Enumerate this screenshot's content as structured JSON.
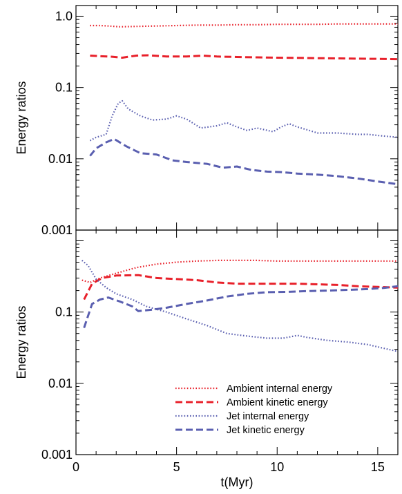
{
  "chart_data": [
    {
      "type": "line",
      "panel": "top",
      "title": "",
      "xlabel": "",
      "ylabel": "Energy ratios",
      "xlim": [
        0,
        16
      ],
      "ylim": [
        0.001,
        1.0
      ],
      "yscale": "log",
      "yticks": [
        {
          "value": 0.001,
          "label": "0.001"
        },
        {
          "value": 0.01,
          "label": "0.01"
        },
        {
          "value": 0.1,
          "label": "0.1"
        },
        {
          "value": 1.0,
          "label": "1.0"
        }
      ],
      "xticks": [],
      "series": [
        {
          "name": "Ambient internal energy",
          "color": "#e8202a",
          "style": "dotted",
          "points": [
            [
              0.7,
              0.74
            ],
            [
              1.2,
              0.74
            ],
            [
              1.6,
              0.73
            ],
            [
              2.2,
              0.71
            ],
            [
              3,
              0.72
            ],
            [
              4,
              0.73
            ],
            [
              5,
              0.74
            ],
            [
              6,
              0.75
            ],
            [
              7,
              0.75
            ],
            [
              8,
              0.76
            ],
            [
              9,
              0.76
            ],
            [
              10,
              0.77
            ],
            [
              11,
              0.77
            ],
            [
              12,
              0.77
            ],
            [
              13,
              0.78
            ],
            [
              14,
              0.78
            ],
            [
              15,
              0.78
            ],
            [
              16,
              0.78
            ]
          ]
        },
        {
          "name": "Ambient kinetic energy",
          "color": "#e8202a",
          "style": "dashed",
          "points": [
            [
              0.7,
              0.28
            ],
            [
              1.2,
              0.275
            ],
            [
              1.8,
              0.27
            ],
            [
              2.3,
              0.262
            ],
            [
              3,
              0.28
            ],
            [
              3.6,
              0.283
            ],
            [
              4.5,
              0.272
            ],
            [
              5.5,
              0.272
            ],
            [
              6.3,
              0.28
            ],
            [
              7,
              0.272
            ],
            [
              8,
              0.268
            ],
            [
              9,
              0.265
            ],
            [
              10,
              0.262
            ],
            [
              11,
              0.26
            ],
            [
              12,
              0.258
            ],
            [
              13,
              0.256
            ],
            [
              14,
              0.254
            ],
            [
              15,
              0.252
            ],
            [
              16,
              0.25
            ]
          ]
        },
        {
          "name": "Jet internal energy",
          "color": "#5a5fb0",
          "style": "dotted",
          "points": [
            [
              0.7,
              0.018
            ],
            [
              1.0,
              0.02
            ],
            [
              1.5,
              0.022
            ],
            [
              1.8,
              0.04
            ],
            [
              2.1,
              0.06
            ],
            [
              2.3,
              0.065
            ],
            [
              2.6,
              0.05
            ],
            [
              3.2,
              0.04
            ],
            [
              3.8,
              0.035
            ],
            [
              4.5,
              0.036
            ],
            [
              5,
              0.04
            ],
            [
              5.5,
              0.036
            ],
            [
              6.2,
              0.027
            ],
            [
              7,
              0.029
            ],
            [
              7.5,
              0.032
            ],
            [
              8,
              0.028
            ],
            [
              8.5,
              0.025
            ],
            [
              9,
              0.027
            ],
            [
              9.8,
              0.024
            ],
            [
              10.2,
              0.028
            ],
            [
              10.6,
              0.031
            ],
            [
              11,
              0.028
            ],
            [
              11.6,
              0.025
            ],
            [
              12,
              0.023
            ],
            [
              13,
              0.023
            ],
            [
              14,
              0.022
            ],
            [
              14.5,
              0.022
            ],
            [
              15.2,
              0.021
            ],
            [
              16,
              0.02
            ]
          ]
        },
        {
          "name": "Jet kinetic energy",
          "color": "#5a5fb0",
          "style": "dashed",
          "points": [
            [
              0.7,
              0.011
            ],
            [
              1.0,
              0.014
            ],
            [
              1.5,
              0.017
            ],
            [
              1.9,
              0.019
            ],
            [
              2.5,
              0.015
            ],
            [
              3.2,
              0.012
            ],
            [
              4,
              0.0115
            ],
            [
              4.8,
              0.0095
            ],
            [
              5.5,
              0.009
            ],
            [
              6.5,
              0.0085
            ],
            [
              7.3,
              0.0075
            ],
            [
              8,
              0.0078
            ],
            [
              8.7,
              0.007
            ],
            [
              9.5,
              0.0066
            ],
            [
              10.2,
              0.0065
            ],
            [
              11,
              0.0062
            ],
            [
              12,
              0.006
            ],
            [
              13,
              0.0057
            ],
            [
              14,
              0.0053
            ],
            [
              15,
              0.0048
            ],
            [
              16,
              0.0044
            ]
          ]
        }
      ]
    },
    {
      "type": "line",
      "panel": "bottom",
      "title": "",
      "xlabel": "t(Myr)",
      "ylabel": "Energy ratios",
      "xlim": [
        0,
        16
      ],
      "ylim": [
        0.001,
        1.0
      ],
      "yscale": "log",
      "yticks": [
        {
          "value": 0.001,
          "label": "0.001"
        },
        {
          "value": 0.01,
          "label": "0.01"
        },
        {
          "value": 0.1,
          "label": "0.1"
        }
      ],
      "xticks": [
        {
          "value": 0,
          "label": "0"
        },
        {
          "value": 5,
          "label": "5"
        },
        {
          "value": 10,
          "label": "10"
        },
        {
          "value": 15,
          "label": "15"
        }
      ],
      "legend": "bottom-right",
      "series": [
        {
          "name": "Ambient internal energy",
          "color": "#e8202a",
          "style": "dotted",
          "points": [
            [
              0.3,
              0.28
            ],
            [
              0.7,
              0.26
            ],
            [
              1.2,
              0.3
            ],
            [
              2,
              0.35
            ],
            [
              3,
              0.42
            ],
            [
              4,
              0.47
            ],
            [
              5,
              0.5
            ],
            [
              6,
              0.52
            ],
            [
              7,
              0.53
            ],
            [
              8,
              0.53
            ],
            [
              9,
              0.53
            ],
            [
              10,
              0.52
            ],
            [
              11,
              0.52
            ],
            [
              12,
              0.52
            ],
            [
              13,
              0.52
            ],
            [
              14,
              0.52
            ],
            [
              15,
              0.52
            ],
            [
              16,
              0.52
            ]
          ]
        },
        {
          "name": "Ambient kinetic energy",
          "color": "#e8202a",
          "style": "dashed",
          "points": [
            [
              0.4,
              0.15
            ],
            [
              0.8,
              0.25
            ],
            [
              1.3,
              0.3
            ],
            [
              2,
              0.325
            ],
            [
              3.1,
              0.33
            ],
            [
              4,
              0.3
            ],
            [
              5,
              0.29
            ],
            [
              6,
              0.28
            ],
            [
              7,
              0.26
            ],
            [
              8,
              0.25
            ],
            [
              9,
              0.25
            ],
            [
              10,
              0.25
            ],
            [
              11,
              0.25
            ],
            [
              12,
              0.245
            ],
            [
              13,
              0.24
            ],
            [
              14,
              0.23
            ],
            [
              15,
              0.225
            ],
            [
              16,
              0.22
            ]
          ]
        },
        {
          "name": "Jet internal energy",
          "color": "#5a5fb0",
          "style": "dotted",
          "points": [
            [
              0.3,
              0.53
            ],
            [
              0.6,
              0.45
            ],
            [
              1,
              0.29
            ],
            [
              1.5,
              0.22
            ],
            [
              2,
              0.18
            ],
            [
              2.8,
              0.15
            ],
            [
              3.5,
              0.12
            ],
            [
              4.5,
              0.1
            ],
            [
              5.5,
              0.08
            ],
            [
              6.5,
              0.065
            ],
            [
              7.5,
              0.05
            ],
            [
              8.5,
              0.046
            ],
            [
              9.5,
              0.043
            ],
            [
              10.3,
              0.043
            ],
            [
              11,
              0.047
            ],
            [
              11.5,
              0.044
            ],
            [
              12.5,
              0.04
            ],
            [
              13.5,
              0.038
            ],
            [
              14.5,
              0.035
            ],
            [
              15.3,
              0.031
            ],
            [
              16,
              0.028
            ]
          ]
        },
        {
          "name": "Jet kinetic energy",
          "color": "#5a5fb0",
          "style": "dashed",
          "points": [
            [
              0.4,
              0.06
            ],
            [
              0.8,
              0.13
            ],
            [
              1.2,
              0.15
            ],
            [
              1.6,
              0.16
            ],
            [
              2.2,
              0.14
            ],
            [
              2.8,
              0.12
            ],
            [
              3.1,
              0.103
            ],
            [
              3.8,
              0.108
            ],
            [
              4.5,
              0.115
            ],
            [
              5.5,
              0.13
            ],
            [
              6.5,
              0.145
            ],
            [
              7.5,
              0.165
            ],
            [
              8.5,
              0.18
            ],
            [
              9.5,
              0.19
            ],
            [
              10.5,
              0.192
            ],
            [
              11.5,
              0.197
            ],
            [
              12.5,
              0.2
            ],
            [
              13.5,
              0.205
            ],
            [
              14.5,
              0.21
            ],
            [
              15.3,
              0.218
            ],
            [
              16,
              0.23
            ]
          ]
        }
      ]
    }
  ]
}
